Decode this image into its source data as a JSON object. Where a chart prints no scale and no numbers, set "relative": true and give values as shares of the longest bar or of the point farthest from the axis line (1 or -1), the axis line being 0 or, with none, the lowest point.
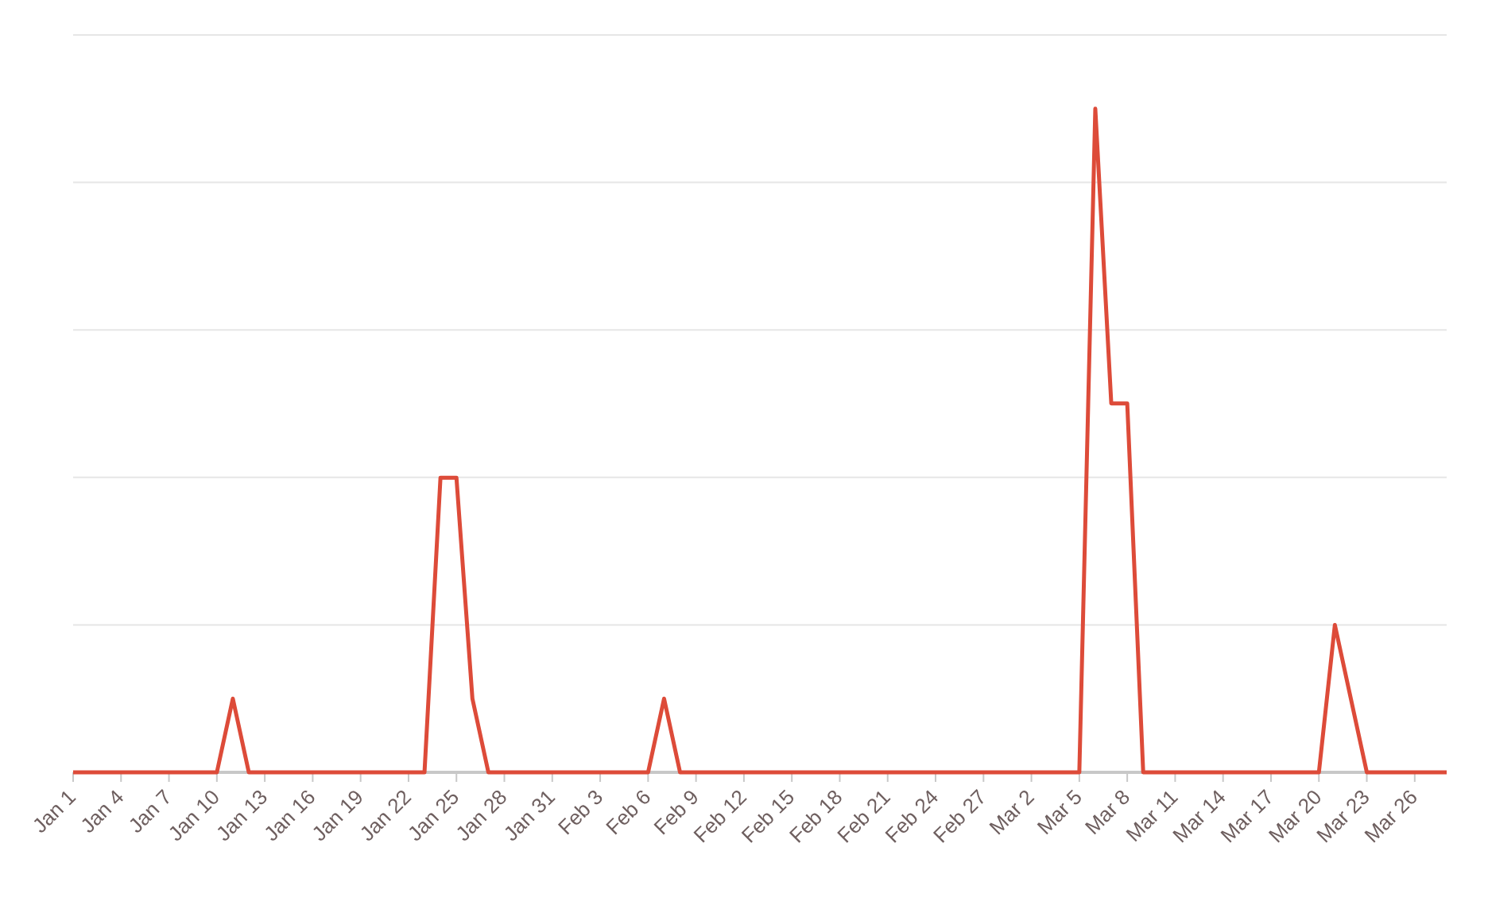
{
  "chart_data": {
    "type": "line",
    "relative": true,
    "grid": true,
    "marker": "none",
    "line_style": "solid",
    "x": [
      "--01-01",
      "--01-10",
      "--01-11",
      "--01-12",
      "--01-23",
      "--01-24",
      "--01-25",
      "--01-26",
      "--01-27",
      "--02-06",
      "--02-07",
      "--02-08",
      "--03-05",
      "--03-06",
      "--03-07",
      "--03-08",
      "--03-09",
      "--03-20",
      "--03-21",
      "--03-23",
      "--03-28"
    ],
    "series": [
      {
        "color": "#dd4b39",
        "values": [
          0,
          0,
          0.111,
          0,
          0,
          0.444,
          0.444,
          0.111,
          0,
          0,
          0.111,
          0,
          0,
          1,
          0.556,
          0.556,
          0,
          0,
          0.222,
          0,
          0
        ]
      }
    ],
    "xlim": [
      "--01-01",
      "--03-28"
    ],
    "xticks": [
      {
        "value": "--01-01",
        "label": "Jan 1"
      },
      {
        "value": "--01-04",
        "label": "Jan 4"
      },
      {
        "value": "--01-07",
        "label": "Jan 7"
      },
      {
        "value": "--01-10",
        "label": "Jan 10"
      },
      {
        "value": "--01-13",
        "label": "Jan 13"
      },
      {
        "value": "--01-16",
        "label": "Jan 16"
      },
      {
        "value": "--01-19",
        "label": "Jan 19"
      },
      {
        "value": "--01-22",
        "label": "Jan 22"
      },
      {
        "value": "--01-25",
        "label": "Jan 25"
      },
      {
        "value": "--01-28",
        "label": "Jan 28"
      },
      {
        "value": "--01-31",
        "label": "Jan 31"
      },
      {
        "value": "--02-03",
        "label": "Feb 3"
      },
      {
        "value": "--02-06",
        "label": "Feb 6"
      },
      {
        "value": "--02-09",
        "label": "Feb 9"
      },
      {
        "value": "--02-12",
        "label": "Feb 12"
      },
      {
        "value": "--02-15",
        "label": "Feb 15"
      },
      {
        "value": "--02-18",
        "label": "Feb 18"
      },
      {
        "value": "--02-21",
        "label": "Feb 21"
      },
      {
        "value": "--02-24",
        "label": "Feb 24"
      },
      {
        "value": "--02-27",
        "label": "Feb 27"
      },
      {
        "value": "--03-02",
        "label": "Mar 2"
      },
      {
        "value": "--03-05",
        "label": "Mar 5"
      },
      {
        "value": "--03-08",
        "label": "Mar 8"
      },
      {
        "value": "--03-11",
        "label": "Mar 11"
      },
      {
        "value": "--03-14",
        "label": "Mar 14"
      },
      {
        "value": "--03-17",
        "label": "Mar 17"
      },
      {
        "value": "--03-20",
        "label": "Mar 20"
      },
      {
        "value": "--03-23",
        "label": "Mar 23"
      },
      {
        "value": "--03-26",
        "label": "Mar 26"
      }
    ]
  }
}
